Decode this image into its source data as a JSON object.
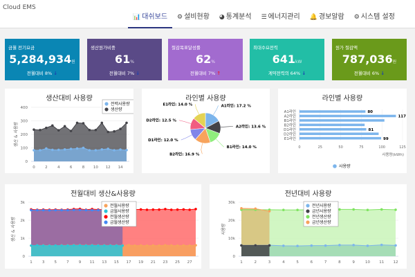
{
  "header": {
    "brand": "Cloud EMS",
    "nav": [
      {
        "icon": "bar-chart-icon",
        "glyph": "📊",
        "label": "대쉬보드",
        "active": true
      },
      {
        "icon": "cogs-icon",
        "glyph": "⚙",
        "label": "설비현황"
      },
      {
        "icon": "pie-chart-icon",
        "glyph": "◕",
        "label": "통계분석"
      },
      {
        "icon": "list-icon",
        "glyph": "☰",
        "label": "에너지관리"
      },
      {
        "icon": "bell-icon",
        "glyph": "🔔",
        "label": "경보알람"
      },
      {
        "icon": "gear-icon",
        "glyph": "⚙",
        "label": "시스템 설정"
      }
    ]
  },
  "cards": [
    {
      "title": "금월 전기요금",
      "value": "5,284,934",
      "unit": "원",
      "sub": "전월대비 8%",
      "trend": "down",
      "color": "#0a86b4"
    },
    {
      "title": "생산원가비중",
      "value": "61",
      "unit": "%",
      "sub": "전월대비 7%",
      "trend": "down",
      "color": "#5a4a87"
    },
    {
      "title": "절감목표달성률",
      "value": "62",
      "unit": "%",
      "sub": "전월대비 7%",
      "trend": "up",
      "color": "#a26bcf"
    },
    {
      "title": "최대수요전력",
      "value": "641",
      "unit": "kW",
      "sub": "계약전력의 64%",
      "trend": "down",
      "color": "#22bea6"
    },
    {
      "title": "원가 절감액",
      "value": "787,036",
      "unit": "원",
      "sub": "전월대비 6%",
      "trend": "down",
      "color": "#6a9a1b"
    }
  ],
  "chart_data": [
    {
      "type": "area",
      "title": "생산대비 사용량",
      "ylabel": "생산 & 사용량",
      "ylim": [
        0,
        400
      ],
      "yticks": [
        0,
        100,
        200,
        300,
        400
      ],
      "xticks": [
        0,
        2,
        4,
        6,
        8,
        10,
        12,
        14
      ],
      "x": [
        0,
        1,
        2,
        3,
        4,
        5,
        6,
        7,
        8,
        9,
        10,
        11,
        12,
        13,
        14,
        15
      ],
      "legend": "top-right",
      "series": [
        {
          "name": "전력사용량",
          "color": "#7cb5ec",
          "values": [
            82,
            82,
            95,
            85,
            85,
            88,
            92,
            95,
            100,
            82,
            82,
            88,
            93,
            82,
            87,
            83
          ]
        },
        {
          "name": "생산량",
          "color": "#434348",
          "values": [
            235,
            232,
            248,
            265,
            230,
            260,
            225,
            285,
            282,
            232,
            232,
            285,
            218,
            222,
            240,
            285
          ]
        }
      ]
    },
    {
      "type": "pie",
      "title": "라인별 사용량",
      "slices": [
        {
          "label": "A1라인",
          "value": 17.2,
          "color": "#7cb5ec"
        },
        {
          "label": "A2라인",
          "value": 13.6,
          "color": "#434348"
        },
        {
          "label": "B1라인",
          "value": 14.0,
          "color": "#90ed7d"
        },
        {
          "label": "B2라인",
          "value": 16.9,
          "color": "#f7a35c"
        },
        {
          "label": "D1라인",
          "value": 12.0,
          "color": "#8085e9"
        },
        {
          "label": "D2라인",
          "value": 12.5,
          "color": "#f15c80"
        },
        {
          "label": "E1라인",
          "value": 14.0,
          "color": "#e4d354"
        }
      ]
    },
    {
      "type": "bar",
      "title": "라인별 사용량",
      "categories": [
        "A1라인",
        "A2라인",
        "B1라인",
        "B2라인",
        "D1라인",
        "D2라인",
        "E1라인"
      ],
      "values": [
        80,
        117,
        103,
        79,
        81,
        96,
        99
      ],
      "data_labels": [
        "80",
        "117",
        "",
        "",
        "81",
        "",
        "99"
      ],
      "xlabel": "사용량(kWh)",
      "xlim": [
        0,
        125
      ],
      "xticks": [
        0,
        25,
        50,
        75,
        100,
        125
      ],
      "series_name": "사용량",
      "color": "#7cb5ec",
      "legend": "bottom"
    },
    {
      "type": "area",
      "title": "전월대비 생산&사용량",
      "ylabel": "생산 & 사용량",
      "ylim": [
        0,
        3000
      ],
      "yticks": [
        0,
        1000,
        2000,
        3000
      ],
      "ytick_labels": [
        "0",
        "1k",
        "2k",
        "3k"
      ],
      "xticks": [
        1,
        3,
        5,
        7,
        9,
        11,
        13,
        15,
        17,
        19,
        21,
        23,
        25,
        27
      ],
      "legend": "top-center",
      "series": [
        {
          "name": "전월사용량",
          "color": "#f7a35c",
          "x": [
            1,
            2,
            3,
            4,
            5,
            6,
            7,
            8,
            9,
            10,
            11,
            12,
            13,
            14,
            15,
            16,
            17,
            18,
            19,
            20,
            21,
            22,
            23,
            24,
            25,
            26,
            27,
            28
          ],
          "values": [
            590,
            600,
            600,
            590,
            590,
            600,
            600,
            610,
            610,
            600,
            610,
            600,
            600,
            600,
            600,
            600,
            620,
            590,
            600,
            590,
            600,
            590,
            610,
            600,
            590,
            600,
            590,
            610
          ]
        },
        {
          "name": "금월사용량",
          "color": "#2bc4d9",
          "x": [
            1,
            2,
            3,
            4,
            5,
            6,
            7,
            8,
            9,
            10,
            11,
            12,
            13,
            14,
            15,
            16
          ],
          "values": [
            590,
            600,
            590,
            580,
            590,
            590,
            590,
            600,
            600,
            590,
            600,
            590,
            590,
            590,
            590,
            590
          ]
        },
        {
          "name": "전월생산량",
          "color": "#ff0000",
          "fill": "#ff6b6b",
          "x": [
            1,
            2,
            3,
            4,
            5,
            6,
            7,
            8,
            9,
            10,
            11,
            12,
            13,
            14,
            15,
            16,
            17,
            18,
            19,
            20,
            21,
            22,
            23,
            24,
            25,
            26,
            27,
            28
          ],
          "values": [
            2600,
            2580,
            2590,
            2580,
            2590,
            2580,
            2590,
            2620,
            2630,
            2580,
            2620,
            2590,
            2590,
            2580,
            2590,
            2570,
            2590,
            2590,
            2600,
            2580,
            2590,
            2590,
            2620,
            2580,
            2590,
            2600,
            2580,
            2620
          ]
        },
        {
          "name": "금월생산량",
          "color": "#4286f4",
          "fill": "#8a6aa8",
          "x": [
            1,
            2,
            3,
            4,
            5,
            6,
            7,
            8,
            9,
            10,
            11,
            12,
            13,
            14,
            15,
            16
          ],
          "values": [
            2560,
            2560,
            2560,
            2550,
            2560,
            2560,
            2560,
            2570,
            2570,
            2560,
            2560,
            2560,
            2560,
            2560,
            2560,
            2560
          ]
        }
      ]
    },
    {
      "type": "area",
      "title": "전년대비 사용량",
      "ylabel": "사용량",
      "ylim": [
        0,
        30000
      ],
      "yticks": [
        0,
        10000,
        20000,
        30000
      ],
      "ytick_labels": [
        "0",
        "10k",
        "20k",
        "30k"
      ],
      "xticks": [
        1,
        2,
        3,
        4,
        5,
        6,
        7,
        8,
        9,
        10,
        11,
        12
      ],
      "legend": "top-center",
      "series": [
        {
          "name": "전년사용량",
          "color": "#7cb5ec",
          "fill": "#9dd8b4",
          "x": [
            1,
            2,
            3,
            4,
            5,
            6,
            7,
            8,
            9,
            10,
            11,
            12
          ],
          "values": [
            6000,
            6000,
            6100,
            5800,
            5700,
            5900,
            5900,
            6200,
            6200,
            5800,
            6300,
            6000
          ]
        },
        {
          "name": "금년사용량",
          "color": "#434348",
          "x": [
            1,
            2,
            3
          ],
          "values": [
            6000,
            6000,
            6000
          ]
        },
        {
          "name": "전년생산량",
          "color": "#7ee35f",
          "fill": "#c9f5b8",
          "x": [
            1,
            2,
            3,
            4,
            5,
            6,
            7,
            8,
            9,
            10,
            11,
            12
          ],
          "values": [
            25800,
            25800,
            25800,
            25700,
            25700,
            25800,
            25800,
            26000,
            26000,
            25700,
            26000,
            25800
          ]
        },
        {
          "name": "금년생산량",
          "color": "#f7a35c",
          "fill": "#d9c07a",
          "x": [
            1,
            2,
            3
          ],
          "values": [
            26600,
            26400,
            25000
          ]
        }
      ]
    }
  ]
}
